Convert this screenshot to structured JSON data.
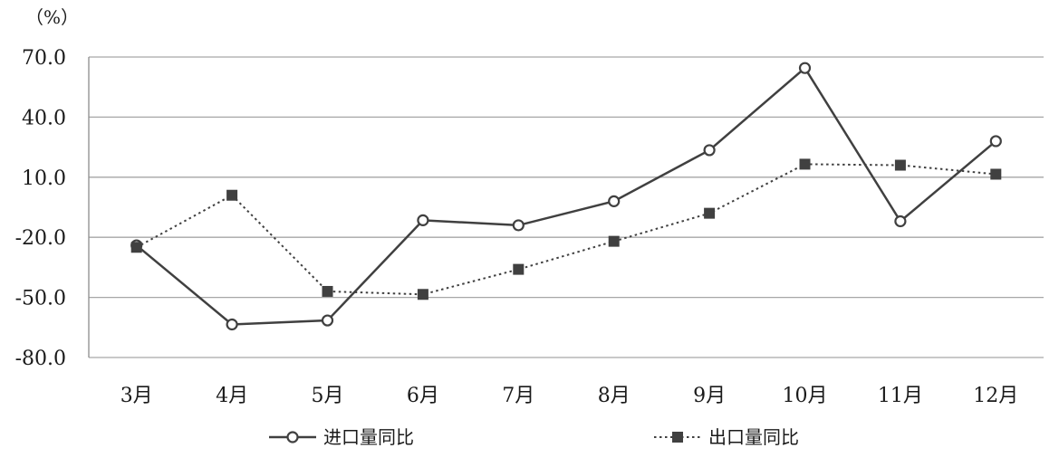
{
  "chart_data": {
    "type": "line",
    "unit_label": "（%）",
    "categories": [
      "3月",
      "4月",
      "5月",
      "6月",
      "7月",
      "8月",
      "9月",
      "10月",
      "11月",
      "12月"
    ],
    "ylim": [
      -80.0,
      70.0
    ],
    "yticks": [
      70.0,
      40.0,
      10.0,
      -20.0,
      -50.0,
      -80.0
    ],
    "ytick_labels": [
      "70.0",
      "40.0",
      "10.0",
      "-20.0",
      "-50.0",
      "-80.0"
    ],
    "grid": true,
    "legend_position": "bottom",
    "series": [
      {
        "name": "进口量同比",
        "style": "solid",
        "marker": "open-circle",
        "color": "#404040",
        "values": [
          -24.0,
          -63.5,
          -61.5,
          -11.5,
          -14.0,
          -2.0,
          23.5,
          64.5,
          -12.0,
          28.0
        ]
      },
      {
        "name": "出口量同比",
        "style": "dotted",
        "marker": "filled-square",
        "color": "#404040",
        "values": [
          -25.0,
          1.0,
          -47.0,
          -48.5,
          -36.0,
          -22.0,
          -8.0,
          16.5,
          16.0,
          11.5
        ]
      }
    ]
  }
}
